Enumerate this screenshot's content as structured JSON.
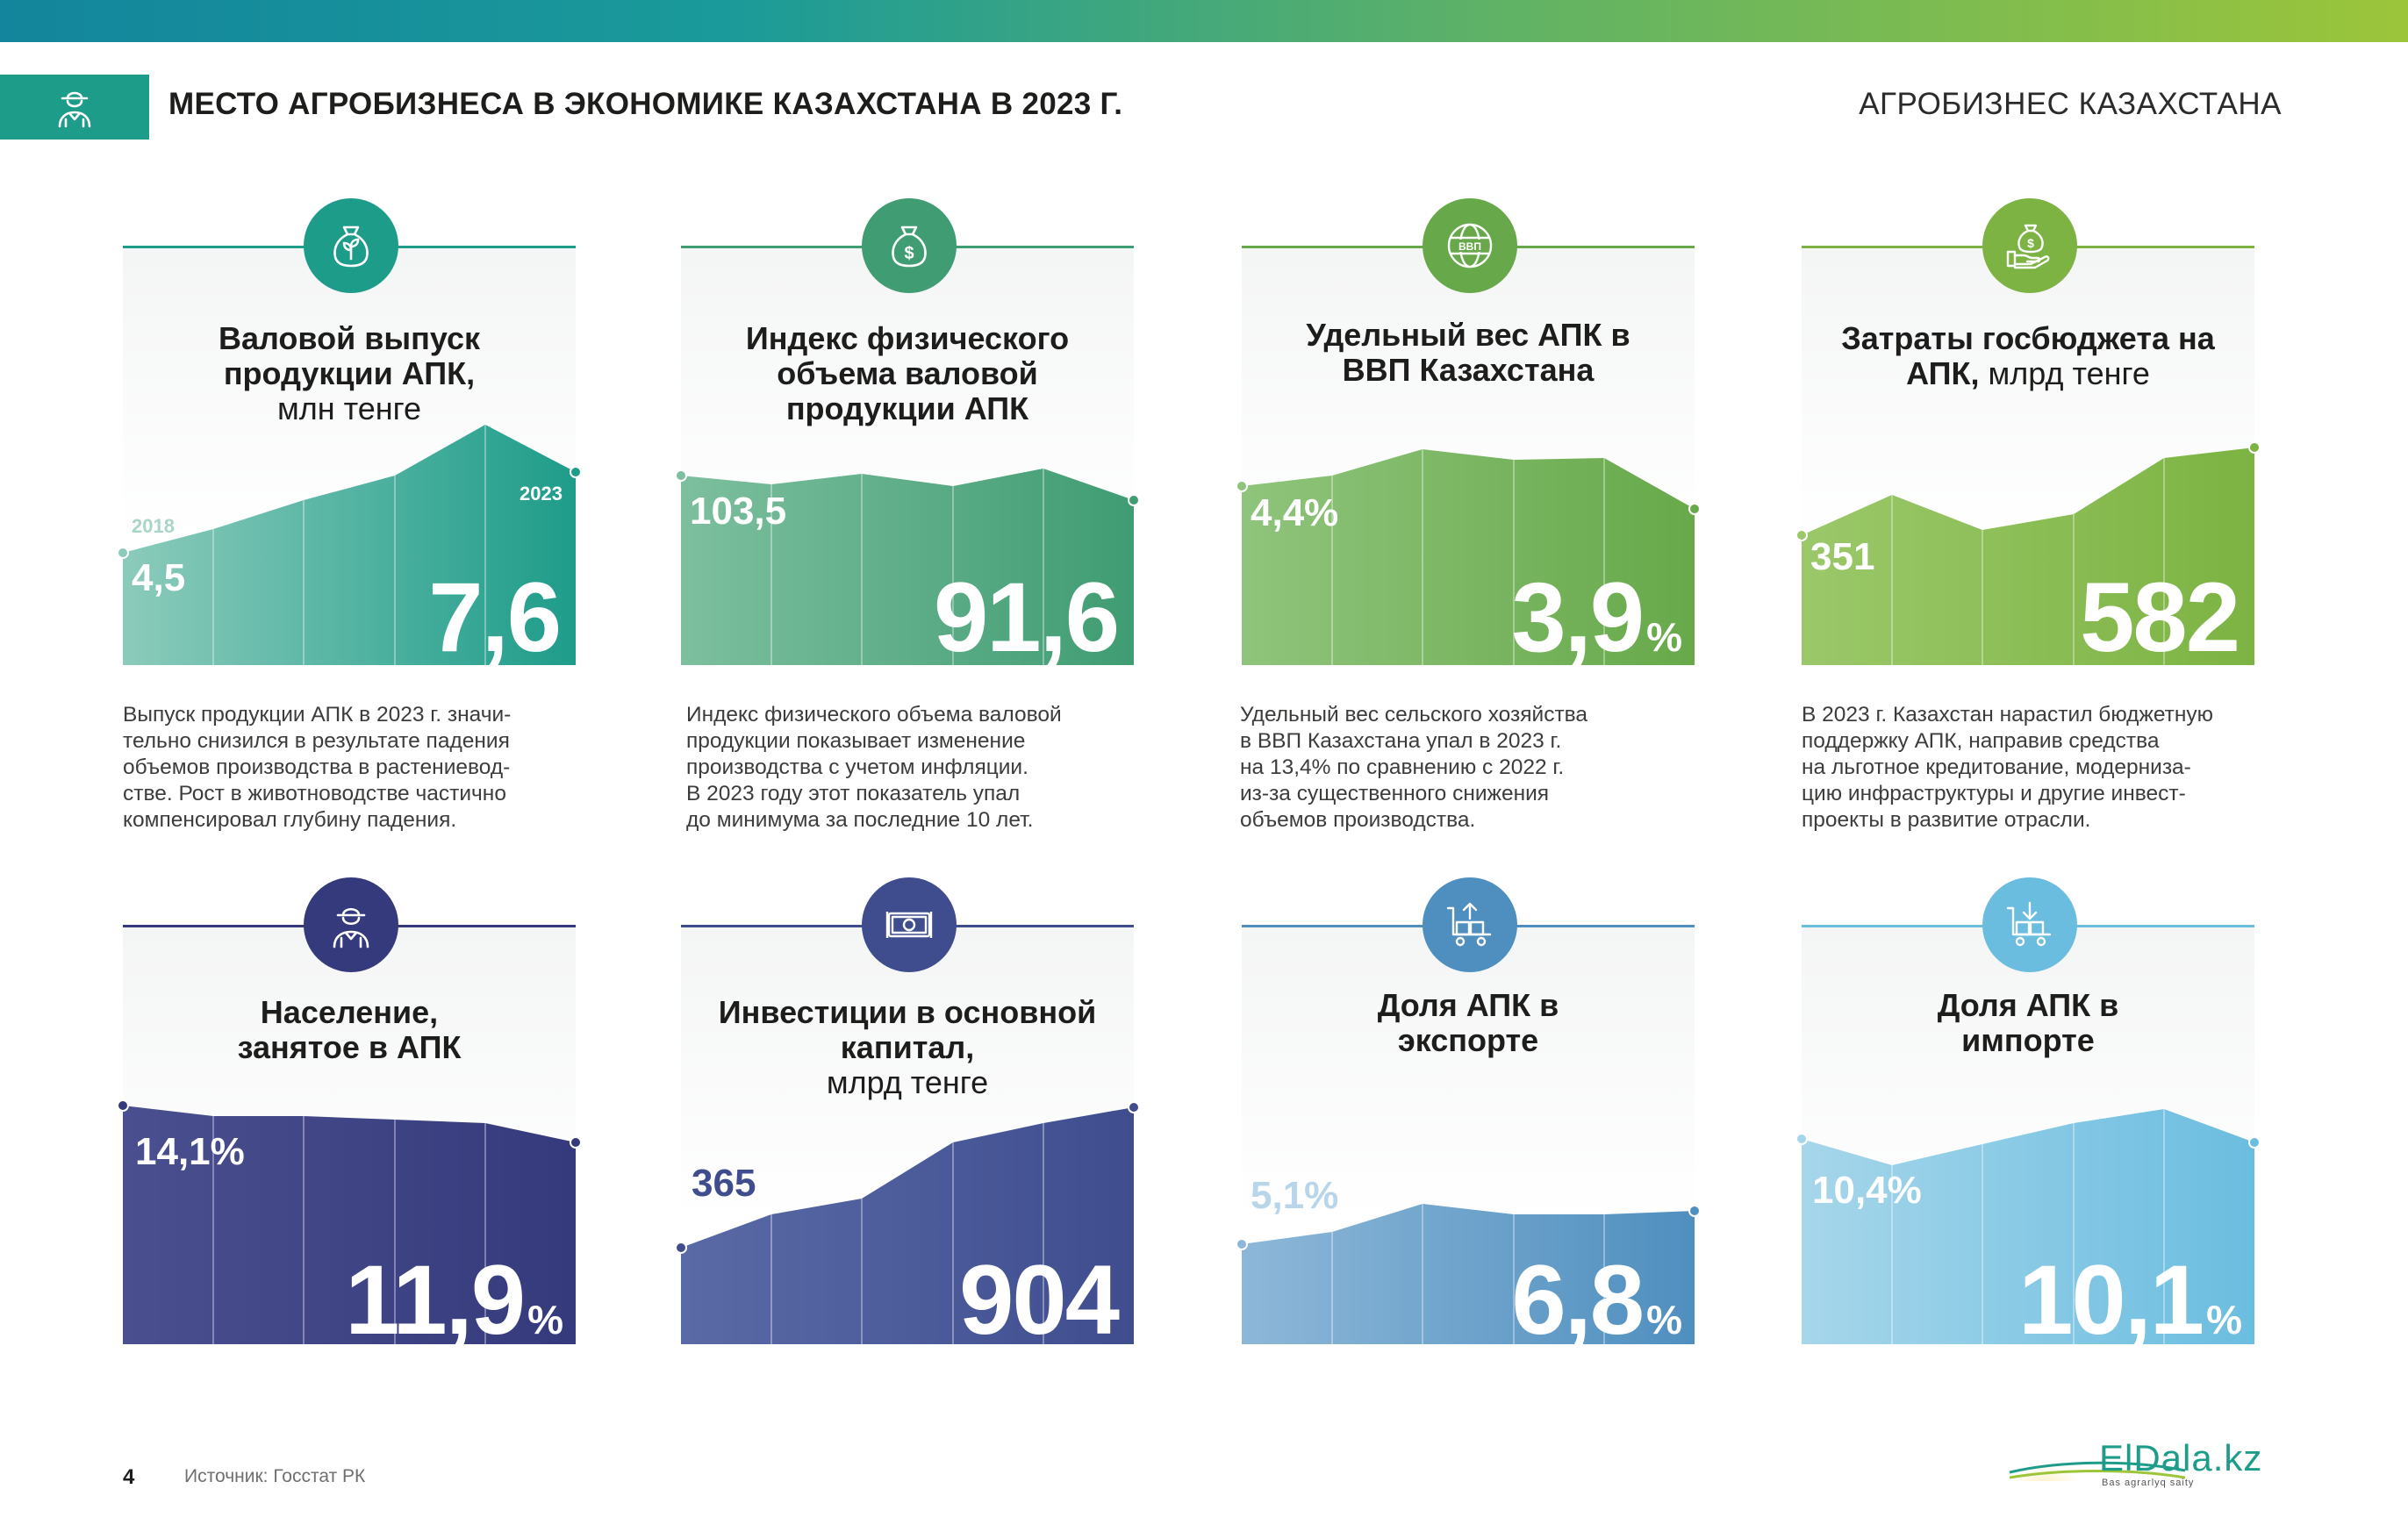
{
  "header": {
    "title": "МЕСТО АГРОБИЗНЕСА В ЭКОНОМИКЕ КАЗАХСТАНА В 2023 Г.",
    "section": "АГРОБИЗНЕС КАЗАХСТАНА"
  },
  "colors": {
    "top_band": [
      "#13859c",
      "#9cc53a"
    ],
    "header_icon_bg": "#1e9c8a"
  },
  "cards": [
    {
      "id": "gross-output",
      "icon": "money-bag-sprout-icon",
      "color": "#1e9c8a",
      "title": "Валовой выпуск продукции АПК,",
      "unit": "млн тенге",
      "start": "4,5",
      "end": "7,6",
      "pct": "",
      "year_start": "2018",
      "year_end": "2023",
      "description": "Выпуск продукции АПК в 2023 г. значи-\nтельно снизился в результате падения\nобъемов производства в растениевод-\nстве. Рост в животноводстве частично\nкомпенсировал глубину падения."
    },
    {
      "id": "physical-volume-index",
      "icon": "money-bag-dollar-icon",
      "color": "#3f9c73",
      "title": "Индекс физического объема валовой продукции АПК",
      "unit": "",
      "start": "103,5",
      "end": "91,6",
      "pct": "",
      "description": "Индекс физического объема валовой\nпродукции показывает изменение\nпроизводства  с учетом инфляции.\nВ 2023 году этот показатель упал\nдо минимума за последние 10 лет."
    },
    {
      "id": "gdp-share",
      "icon": "globe-vvp-icon",
      "color": "#67a94a",
      "title": "Удельный вес АПК в ВВП Казахстана",
      "unit": "",
      "start": "4,4%",
      "end": "3,9",
      "pct": "%",
      "description": "Удельный вес сельского хозяйства\nв ВВП Казахстана упал в 2023 г.\nна 13,4% по сравнению с 2022 г.\nиз-за существенного снижения\nобъемов производства."
    },
    {
      "id": "state-budget",
      "icon": "hand-money-bag-icon",
      "color": "#7cb342",
      "title": "Затраты госбюджета на АПК,",
      "unit": "млрд тенге",
      "start": "351",
      "end": "582",
      "pct": "",
      "description": "В 2023 г. Казахстан нарастил бюджетную\nподдержку АПК, направив средства\nна льготное кредитование, модерниза-\nцию инфраструктуры и другие инвест-\nпроекты в развитие отрасли."
    },
    {
      "id": "employment",
      "icon": "farmer-icon",
      "color": "#353a7c",
      "title": "Население, занятое в АПК",
      "unit": "",
      "start": "14,1%",
      "end": "11,9",
      "pct": "%"
    },
    {
      "id": "investment",
      "icon": "banknotes-icon",
      "color": "#3f4d8f",
      "title": "Инвестиции в основной капитал,",
      "unit": "млрд тенге",
      "start": "365",
      "end": "904",
      "pct": ""
    },
    {
      "id": "export-share",
      "icon": "cart-export-icon",
      "color": "#4f8fbf",
      "title": "Доля АПК в экспорте",
      "unit": "",
      "start": "5,1%",
      "end": "6,8",
      "pct": "%"
    },
    {
      "id": "import-share",
      "icon": "cart-import-icon",
      "color": "#6bbde0",
      "title": "Доля АПК в импорте",
      "unit": "",
      "start": "10,4%",
      "end": "10,1",
      "pct": "%"
    }
  ],
  "footer": {
    "page": "4",
    "source": "Источник: Госстат РК"
  },
  "logo": {
    "name": "ElDala.kz",
    "tagline": "Bas agrarlyq saity"
  }
}
